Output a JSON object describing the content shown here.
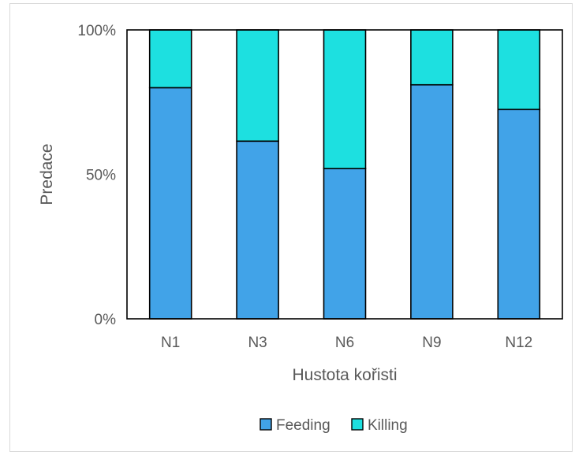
{
  "chart_data": {
    "type": "bar",
    "stacked": true,
    "percent": true,
    "categories": [
      "N1",
      "N3",
      "N6",
      "N9",
      "N12"
    ],
    "series": [
      {
        "name": "Feeding",
        "color": "#41a3e8",
        "values": [
          80,
          61.5,
          52,
          81,
          72.5
        ]
      },
      {
        "name": "Killing",
        "color": "#1de0e0",
        "values": [
          20,
          38.5,
          48,
          19,
          27.5
        ]
      }
    ],
    "xlabel": "Hustota kořisti",
    "ylabel": "Predace",
    "ylim": [
      0,
      100
    ],
    "yticks": [
      "0%",
      "50%",
      "100%"
    ],
    "grid": false,
    "legend_position": "bottom"
  }
}
